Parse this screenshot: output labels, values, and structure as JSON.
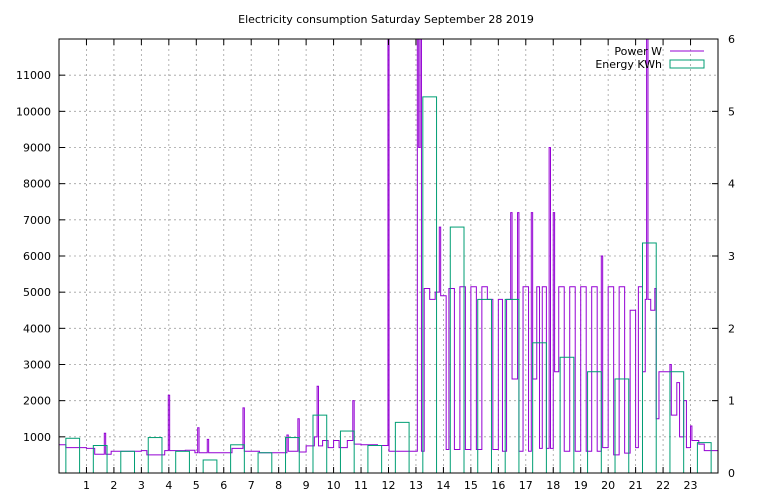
{
  "chart_data": {
    "type": "line",
    "title": "Electricity consumption Saturday September 28 2019",
    "xlabel": "",
    "ylabel": "",
    "xlim": [
      0,
      24
    ],
    "ylim": [
      0,
      12000
    ],
    "y2lim": [
      0,
      6
    ],
    "grid": true,
    "legend_position": "top-right",
    "x_ticks": [
      1,
      2,
      3,
      4,
      5,
      6,
      7,
      8,
      9,
      10,
      11,
      12,
      13,
      14,
      15,
      16,
      17,
      18,
      19,
      20,
      21,
      22,
      23
    ],
    "y_ticks": [
      1000,
      2000,
      3000,
      4000,
      5000,
      6000,
      7000,
      8000,
      9000,
      10000,
      11000
    ],
    "y2_ticks": [
      0,
      1,
      2,
      3,
      4,
      5,
      6
    ],
    "series": [
      {
        "name": "Power W",
        "color": "#9400d3",
        "axis": "y1",
        "style": "step",
        "points": [
          [
            0,
            780
          ],
          [
            0.25,
            700
          ],
          [
            1.0,
            680
          ],
          [
            1.3,
            520
          ],
          [
            1.65,
            1100
          ],
          [
            1.7,
            520
          ],
          [
            1.9,
            600
          ],
          [
            3.0,
            620
          ],
          [
            3.2,
            500
          ],
          [
            3.85,
            620
          ],
          [
            3.98,
            2150
          ],
          [
            4.03,
            620
          ],
          [
            4.6,
            630
          ],
          [
            4.95,
            560
          ],
          [
            5.05,
            1250
          ],
          [
            5.1,
            560
          ],
          [
            5.4,
            930
          ],
          [
            5.45,
            560
          ],
          [
            6.3,
            680
          ],
          [
            6.7,
            1800
          ],
          [
            6.75,
            600
          ],
          [
            7.3,
            560
          ],
          [
            8.3,
            1050
          ],
          [
            8.35,
            600
          ],
          [
            8.7,
            1500
          ],
          [
            8.75,
            580
          ],
          [
            9.0,
            750
          ],
          [
            9.3,
            1000
          ],
          [
            9.4,
            2400
          ],
          [
            9.45,
            750
          ],
          [
            9.6,
            900
          ],
          [
            9.8,
            700
          ],
          [
            10.0,
            900
          ],
          [
            10.2,
            700
          ],
          [
            10.5,
            900
          ],
          [
            10.7,
            2000
          ],
          [
            10.75,
            800
          ],
          [
            11.0,
            780
          ],
          [
            11.6,
            760
          ],
          [
            11.98,
            12000
          ],
          [
            12.02,
            600
          ],
          [
            12.5,
            600
          ],
          [
            12.95,
            600
          ],
          [
            13.05,
            12000
          ],
          [
            13.1,
            9000
          ],
          [
            13.15,
            12000
          ],
          [
            13.2,
            600
          ],
          [
            13.3,
            5100
          ],
          [
            13.5,
            4800
          ],
          [
            13.7,
            5000
          ],
          [
            13.85,
            6800
          ],
          [
            13.9,
            4900
          ],
          [
            14.1,
            650
          ],
          [
            14.2,
            5100
          ],
          [
            14.4,
            650
          ],
          [
            14.6,
            5150
          ],
          [
            14.8,
            650
          ],
          [
            15.0,
            5150
          ],
          [
            15.2,
            650
          ],
          [
            15.4,
            5150
          ],
          [
            15.6,
            4800
          ],
          [
            15.8,
            650
          ],
          [
            16.0,
            4800
          ],
          [
            16.15,
            600
          ],
          [
            16.3,
            4800
          ],
          [
            16.45,
            7200
          ],
          [
            16.5,
            2600
          ],
          [
            16.7,
            7200
          ],
          [
            16.75,
            600
          ],
          [
            16.9,
            5150
          ],
          [
            17.1,
            600
          ],
          [
            17.2,
            7200
          ],
          [
            17.25,
            2600
          ],
          [
            17.4,
            5150
          ],
          [
            17.5,
            680
          ],
          [
            17.6,
            5150
          ],
          [
            17.75,
            680
          ],
          [
            17.85,
            9000
          ],
          [
            17.9,
            680
          ],
          [
            18.0,
            7200
          ],
          [
            18.05,
            2800
          ],
          [
            18.2,
            5150
          ],
          [
            18.4,
            600
          ],
          [
            18.6,
            5150
          ],
          [
            18.8,
            600
          ],
          [
            19.0,
            5150
          ],
          [
            19.2,
            600
          ],
          [
            19.4,
            5150
          ],
          [
            19.6,
            600
          ],
          [
            19.75,
            6000
          ],
          [
            19.8,
            700
          ],
          [
            20.0,
            5150
          ],
          [
            20.2,
            500
          ],
          [
            20.4,
            5150
          ],
          [
            20.6,
            550
          ],
          [
            20.8,
            4500
          ],
          [
            21.0,
            700
          ],
          [
            21.1,
            5150
          ],
          [
            21.25,
            2800
          ],
          [
            21.35,
            4800
          ],
          [
            21.4,
            12000
          ],
          [
            21.45,
            4800
          ],
          [
            21.55,
            4500
          ],
          [
            21.7,
            5100
          ],
          [
            21.75,
            1500
          ],
          [
            21.85,
            2800
          ],
          [
            22.2,
            2800
          ],
          [
            22.25,
            3000
          ],
          [
            22.3,
            1600
          ],
          [
            22.5,
            2500
          ],
          [
            22.6,
            1000
          ],
          [
            22.75,
            2000
          ],
          [
            22.85,
            700
          ],
          [
            23.0,
            1300
          ],
          [
            23.05,
            900
          ],
          [
            23.3,
            800
          ],
          [
            23.5,
            620
          ],
          [
            24.0,
            620
          ]
        ]
      },
      {
        "name": "Energy KWh",
        "color": "#009e73",
        "axis": "y2",
        "style": "boxes",
        "x": [
          0,
          1,
          2,
          3,
          4,
          5,
          6,
          7,
          8,
          9,
          10,
          11,
          12,
          13,
          14,
          15,
          16,
          17,
          18,
          19,
          20,
          21,
          22,
          23
        ],
        "values": [
          0.48,
          0.38,
          0.3,
          0.49,
          0.3,
          0.18,
          0.39,
          0.28,
          0.49,
          0.8,
          0.58,
          0.38,
          0.7,
          5.2,
          3.4,
          2.4,
          2.4,
          1.8,
          1.6,
          1.4,
          1.3,
          3.18,
          1.4,
          0.42
        ]
      }
    ]
  }
}
